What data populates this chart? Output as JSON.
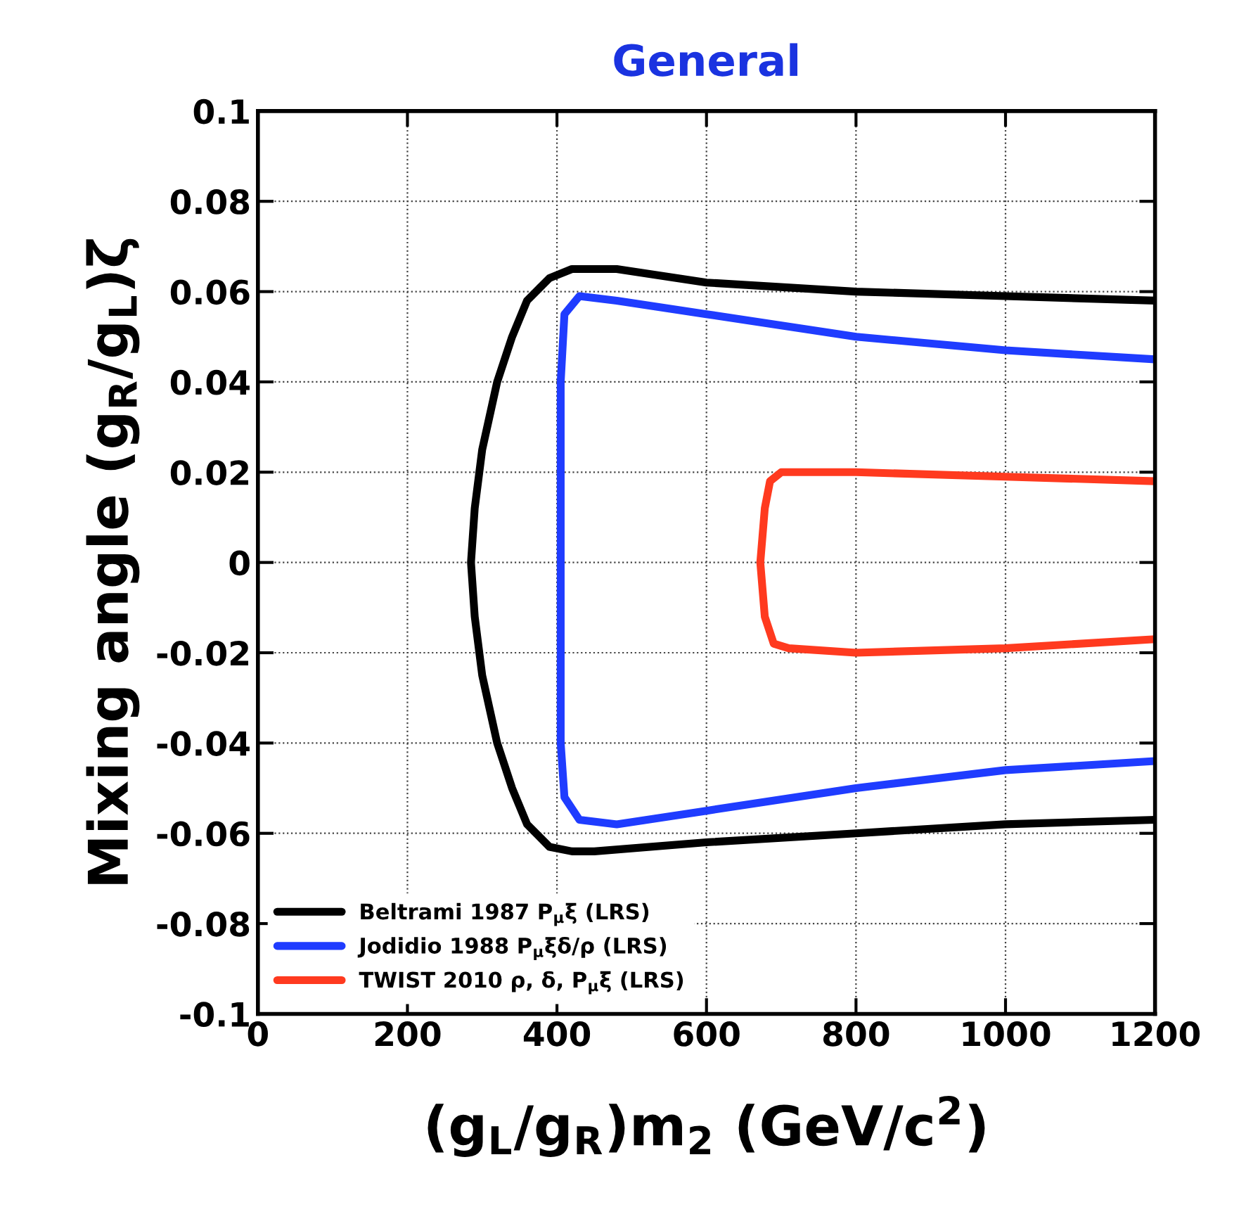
{
  "chart_data": {
    "type": "line",
    "title": "General",
    "xlabel": "(g$_{L}$/g$_{R}$)m$_{2}$ (GeV/c$^{2}$)",
    "ylabel": "Mixing angle (g$_{R}$/g$_{L}$)ζ",
    "xlim": [
      0,
      1200
    ],
    "ylim": [
      -0.1,
      0.1
    ],
    "xticks": [
      0,
      200,
      400,
      600,
      800,
      1000,
      1200
    ],
    "yticks": [
      -0.1,
      -0.08,
      -0.06,
      -0.04,
      -0.02,
      0,
      0.02,
      0.04,
      0.06,
      0.08,
      0.1
    ],
    "grid": true,
    "legend": "bottom left",
    "line_style": "solid",
    "marker": "none",
    "series": [
      {
        "name": "Beltrami 1987 P$_{μ}$ξ (LRS)",
        "color": "#000000",
        "x": [
          1200,
          1000,
          800,
          600,
          480,
          420,
          390,
          360,
          340,
          320,
          300,
          290,
          285,
          290,
          300,
          320,
          340,
          360,
          390,
          420,
          450,
          600,
          800,
          1000,
          1200
        ],
        "values": [
          0.058,
          0.059,
          0.06,
          0.062,
          0.065,
          0.065,
          0.063,
          0.058,
          0.05,
          0.04,
          0.025,
          0.012,
          0,
          -0.012,
          -0.025,
          -0.04,
          -0.05,
          -0.058,
          -0.063,
          -0.064,
          -0.064,
          -0.062,
          -0.06,
          -0.058,
          -0.057
        ]
      },
      {
        "name": "Jodidio 1988 P$_{μ}$ξδ/ρ (LRS)",
        "color": "#1f3cff",
        "x": [
          1200,
          1000,
          800,
          600,
          480,
          430,
          410,
          405,
          405,
          405,
          410,
          430,
          480,
          600,
          800,
          1000,
          1200
        ],
        "values": [
          0.045,
          0.047,
          0.05,
          0.055,
          0.058,
          0.059,
          0.055,
          0.04,
          0,
          -0.04,
          -0.052,
          -0.057,
          -0.058,
          -0.055,
          -0.05,
          -0.046,
          -0.044
        ]
      },
      {
        "name": "TWIST 2010 ρ, δ, P$_{μ}$ξ (LRS)",
        "color": "#ff3a1f",
        "x": [
          1200,
          1000,
          800,
          700,
          685,
          678,
          672,
          678,
          690,
          710,
          800,
          1000,
          1200
        ],
        "values": [
          0.018,
          0.019,
          0.02,
          0.02,
          0.018,
          0.012,
          0,
          -0.012,
          -0.018,
          -0.019,
          -0.02,
          -0.019,
          -0.017
        ]
      }
    ]
  }
}
